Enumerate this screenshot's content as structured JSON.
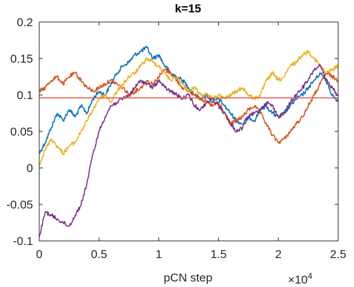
{
  "chart_data": {
    "type": "line",
    "title": "k=15",
    "xlabel": "pCN step",
    "ylabel": "",
    "x_multiplier": {
      "base": "×10",
      "exponent": "4"
    },
    "xlim": [
      0,
      2.5
    ],
    "ylim": [
      -0.1,
      0.2
    ],
    "x_ticks": [
      "0",
      "0.5",
      "1",
      "1.5",
      "2",
      "2.5"
    ],
    "y_ticks": [
      "-0.1",
      "-0.05",
      "0",
      "0.05",
      "0.1",
      "0.15",
      "0.2"
    ],
    "grid": false,
    "reference_line": {
      "y": 0.096,
      "color": "#e8574a"
    },
    "series": [
      {
        "color": "#0072bd",
        "x": [
          0,
          0.05,
          0.1,
          0.15,
          0.2,
          0.25,
          0.3,
          0.35,
          0.4,
          0.45,
          0.5,
          0.55,
          0.6,
          0.65,
          0.7,
          0.75,
          0.8,
          0.85,
          0.9,
          0.95,
          1.0,
          1.05,
          1.1,
          1.15,
          1.2,
          1.25,
          1.3,
          1.35,
          1.4,
          1.45,
          1.5,
          1.55,
          1.6,
          1.65,
          1.7,
          1.75,
          1.8,
          1.85,
          1.9,
          1.95,
          2.0,
          2.05,
          2.1,
          2.15,
          2.2,
          2.25,
          2.3,
          2.35,
          2.4,
          2.45,
          2.5
        ],
        "y": [
          0.02,
          0.035,
          0.055,
          0.075,
          0.065,
          0.08,
          0.07,
          0.085,
          0.075,
          0.095,
          0.105,
          0.1,
          0.115,
          0.13,
          0.14,
          0.145,
          0.155,
          0.16,
          0.165,
          0.15,
          0.155,
          0.14,
          0.13,
          0.125,
          0.12,
          0.11,
          0.1,
          0.095,
          0.1,
          0.09,
          0.095,
          0.085,
          0.075,
          0.065,
          0.06,
          0.07,
          0.065,
          0.08,
          0.085,
          0.075,
          0.07,
          0.075,
          0.085,
          0.095,
          0.1,
          0.11,
          0.12,
          0.13,
          0.12,
          0.1,
          0.09
        ]
      },
      {
        "color": "#d95319",
        "x": [
          0,
          0.05,
          0.1,
          0.15,
          0.2,
          0.25,
          0.3,
          0.35,
          0.4,
          0.45,
          0.5,
          0.55,
          0.6,
          0.65,
          0.7,
          0.75,
          0.8,
          0.85,
          0.9,
          0.95,
          1.0,
          1.05,
          1.1,
          1.15,
          1.2,
          1.25,
          1.3,
          1.35,
          1.4,
          1.45,
          1.5,
          1.55,
          1.6,
          1.65,
          1.7,
          1.75,
          1.8,
          1.85,
          1.9,
          1.95,
          2.0,
          2.05,
          2.1,
          2.15,
          2.2,
          2.25,
          2.3,
          2.35,
          2.4,
          2.45,
          2.5
        ],
        "y": [
          0.105,
          0.11,
          0.12,
          0.125,
          0.115,
          0.125,
          0.13,
          0.12,
          0.11,
          0.105,
          0.11,
          0.115,
          0.12,
          0.115,
          0.11,
          0.1,
          0.105,
          0.11,
          0.12,
          0.115,
          0.125,
          0.135,
          0.13,
          0.12,
          0.11,
          0.105,
          0.1,
          0.095,
          0.09,
          0.085,
          0.09,
          0.075,
          0.06,
          0.065,
          0.07,
          0.08,
          0.085,
          0.075,
          0.06,
          0.045,
          0.035,
          0.04,
          0.05,
          0.06,
          0.07,
          0.085,
          0.1,
          0.115,
          0.13,
          0.125,
          0.12
        ]
      },
      {
        "color": "#edb120",
        "x": [
          0,
          0.05,
          0.1,
          0.15,
          0.2,
          0.25,
          0.3,
          0.35,
          0.4,
          0.45,
          0.5,
          0.55,
          0.6,
          0.65,
          0.7,
          0.75,
          0.8,
          0.85,
          0.9,
          0.95,
          1.0,
          1.05,
          1.1,
          1.15,
          1.2,
          1.25,
          1.3,
          1.35,
          1.4,
          1.45,
          1.5,
          1.55,
          1.6,
          1.65,
          1.7,
          1.75,
          1.8,
          1.85,
          1.9,
          1.95,
          2.0,
          2.05,
          2.1,
          2.15,
          2.2,
          2.25,
          2.3,
          2.35,
          2.4,
          2.45,
          2.5
        ],
        "y": [
          0.005,
          0.025,
          0.04,
          0.03,
          0.02,
          0.03,
          0.035,
          0.05,
          0.065,
          0.08,
          0.095,
          0.1,
          0.09,
          0.105,
          0.115,
          0.125,
          0.13,
          0.14,
          0.15,
          0.145,
          0.14,
          0.13,
          0.12,
          0.125,
          0.115,
          0.105,
          0.11,
          0.1,
          0.1,
          0.095,
          0.1,
          0.095,
          0.1,
          0.105,
          0.11,
          0.1,
          0.095,
          0.1,
          0.12,
          0.13,
          0.12,
          0.125,
          0.14,
          0.145,
          0.155,
          0.16,
          0.15,
          0.14,
          0.13,
          0.135,
          0.14
        ]
      },
      {
        "color": "#7e2f8e",
        "x": [
          0,
          0.05,
          0.1,
          0.15,
          0.2,
          0.25,
          0.3,
          0.35,
          0.4,
          0.45,
          0.5,
          0.55,
          0.6,
          0.65,
          0.7,
          0.75,
          0.8,
          0.85,
          0.9,
          0.95,
          1.0,
          1.05,
          1.1,
          1.15,
          1.2,
          1.25,
          1.3,
          1.35,
          1.4,
          1.45,
          1.5,
          1.55,
          1.6,
          1.65,
          1.7,
          1.75,
          1.8,
          1.85,
          1.9,
          1.95,
          2.0,
          2.05,
          2.1,
          2.15,
          2.2,
          2.25,
          2.3,
          2.35,
          2.4,
          2.45,
          2.5
        ],
        "y": [
          -0.095,
          -0.06,
          -0.065,
          -0.07,
          -0.075,
          -0.08,
          -0.065,
          -0.05,
          -0.02,
          0.02,
          0.05,
          0.07,
          0.085,
          0.09,
          0.095,
          0.1,
          0.11,
          0.12,
          0.115,
          0.11,
          0.12,
          0.11,
          0.105,
          0.1,
          0.095,
          0.1,
          0.085,
          0.08,
          0.09,
          0.095,
          0.085,
          0.075,
          0.06,
          0.05,
          0.055,
          0.07,
          0.075,
          0.08,
          0.09,
          0.085,
          0.07,
          0.075,
          0.09,
          0.1,
          0.11,
          0.12,
          0.135,
          0.14,
          0.12,
          0.11,
          0.1
        ]
      }
    ]
  }
}
